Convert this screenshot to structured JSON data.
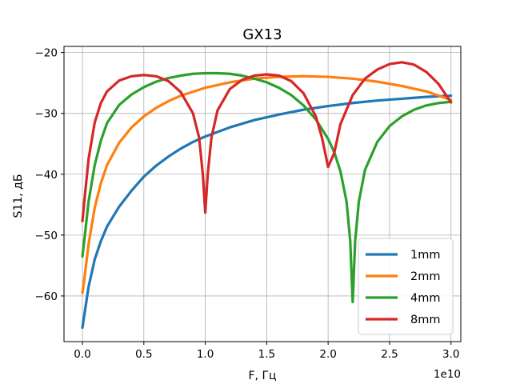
{
  "chart_data": {
    "type": "line",
    "title": "GX13",
    "xlabel": "F, Гц",
    "ylabel": "S11, дБ",
    "x_offset_label": "1e10",
    "xlim": [
      -0.15,
      3.08
    ],
    "ylim": [
      -67.5,
      -19
    ],
    "x_ticks": [
      0.0,
      0.5,
      1.0,
      1.5,
      2.0,
      2.5,
      3.0
    ],
    "x_tick_labels": [
      "0.0",
      "0.5",
      "1.0",
      "1.5",
      "2.0",
      "2.5",
      "3.0"
    ],
    "y_ticks": [
      -60,
      -50,
      -40,
      -30,
      -20
    ],
    "y_tick_labels": [
      "−60",
      "−50",
      "−40",
      "−30",
      "−20"
    ],
    "grid": true,
    "legend_position": "lower-right",
    "series": [
      {
        "name": "1mm",
        "color": "#1f77b4",
        "points": [
          [
            0.0,
            -65.2
          ],
          [
            0.02,
            -62.5
          ],
          [
            0.05,
            -58.5
          ],
          [
            0.1,
            -54.0
          ],
          [
            0.15,
            -51.0
          ],
          [
            0.2,
            -48.6
          ],
          [
            0.3,
            -45.3
          ],
          [
            0.4,
            -42.7
          ],
          [
            0.5,
            -40.4
          ],
          [
            0.6,
            -38.6
          ],
          [
            0.7,
            -37.1
          ],
          [
            0.8,
            -35.8
          ],
          [
            0.9,
            -34.7
          ],
          [
            1.0,
            -33.8
          ],
          [
            1.2,
            -32.3
          ],
          [
            1.4,
            -31.1
          ],
          [
            1.6,
            -30.2
          ],
          [
            1.8,
            -29.4
          ],
          [
            2.0,
            -28.8
          ],
          [
            2.2,
            -28.3
          ],
          [
            2.4,
            -27.9
          ],
          [
            2.6,
            -27.6
          ],
          [
            2.8,
            -27.3
          ],
          [
            3.0,
            -27.1
          ]
        ]
      },
      {
        "name": "2mm",
        "color": "#ff7f0e",
        "points": [
          [
            0.0,
            -59.5
          ],
          [
            0.02,
            -56.5
          ],
          [
            0.05,
            -51.5
          ],
          [
            0.1,
            -45.5
          ],
          [
            0.15,
            -41.5
          ],
          [
            0.2,
            -38.5
          ],
          [
            0.3,
            -34.8
          ],
          [
            0.4,
            -32.3
          ],
          [
            0.5,
            -30.5
          ],
          [
            0.6,
            -29.1
          ],
          [
            0.7,
            -28.0
          ],
          [
            0.8,
            -27.1
          ],
          [
            1.0,
            -25.8
          ],
          [
            1.2,
            -24.9
          ],
          [
            1.4,
            -24.3
          ],
          [
            1.6,
            -24.0
          ],
          [
            1.8,
            -23.9
          ],
          [
            2.0,
            -24.0
          ],
          [
            2.2,
            -24.3
          ],
          [
            2.4,
            -24.8
          ],
          [
            2.6,
            -25.5
          ],
          [
            2.8,
            -26.4
          ],
          [
            3.0,
            -27.8
          ]
        ]
      },
      {
        "name": "4mm",
        "color": "#2ca02c",
        "points": [
          [
            0.0,
            -53.5
          ],
          [
            0.02,
            -50.0
          ],
          [
            0.05,
            -44.5
          ],
          [
            0.1,
            -38.5
          ],
          [
            0.15,
            -34.5
          ],
          [
            0.2,
            -31.6
          ],
          [
            0.3,
            -28.6
          ],
          [
            0.4,
            -26.9
          ],
          [
            0.5,
            -25.7
          ],
          [
            0.6,
            -24.8
          ],
          [
            0.7,
            -24.2
          ],
          [
            0.8,
            -23.8
          ],
          [
            0.9,
            -23.5
          ],
          [
            1.0,
            -23.4
          ],
          [
            1.1,
            -23.4
          ],
          [
            1.2,
            -23.5
          ],
          [
            1.3,
            -23.8
          ],
          [
            1.4,
            -24.3
          ],
          [
            1.5,
            -24.9
          ],
          [
            1.6,
            -25.8
          ],
          [
            1.7,
            -27.0
          ],
          [
            1.8,
            -28.7
          ],
          [
            1.9,
            -31.0
          ],
          [
            2.0,
            -34.2
          ],
          [
            2.05,
            -36.4
          ],
          [
            2.1,
            -39.5
          ],
          [
            2.15,
            -44.5
          ],
          [
            2.18,
            -51.0
          ],
          [
            2.2,
            -61.0
          ],
          [
            2.22,
            -51.0
          ],
          [
            2.25,
            -44.5
          ],
          [
            2.3,
            -39.3
          ],
          [
            2.4,
            -34.7
          ],
          [
            2.5,
            -32.1
          ],
          [
            2.6,
            -30.5
          ],
          [
            2.7,
            -29.4
          ],
          [
            2.8,
            -28.7
          ],
          [
            2.9,
            -28.3
          ],
          [
            3.0,
            -28.1
          ]
        ]
      },
      {
        "name": "8mm",
        "color": "#d62728",
        "points": [
          [
            0.0,
            -47.7
          ],
          [
            0.02,
            -43.5
          ],
          [
            0.05,
            -37.5
          ],
          [
            0.1,
            -31.5
          ],
          [
            0.15,
            -28.3
          ],
          [
            0.2,
            -26.4
          ],
          [
            0.3,
            -24.6
          ],
          [
            0.4,
            -23.9
          ],
          [
            0.5,
            -23.7
          ],
          [
            0.6,
            -23.9
          ],
          [
            0.7,
            -24.7
          ],
          [
            0.8,
            -26.5
          ],
          [
            0.9,
            -30.0
          ],
          [
            0.95,
            -34.0
          ],
          [
            0.98,
            -40.0
          ],
          [
            1.0,
            -46.3
          ],
          [
            1.02,
            -40.0
          ],
          [
            1.05,
            -34.0
          ],
          [
            1.1,
            -29.5
          ],
          [
            1.2,
            -26.0
          ],
          [
            1.3,
            -24.5
          ],
          [
            1.4,
            -23.8
          ],
          [
            1.5,
            -23.6
          ],
          [
            1.6,
            -23.8
          ],
          [
            1.7,
            -24.7
          ],
          [
            1.8,
            -26.7
          ],
          [
            1.9,
            -30.5
          ],
          [
            1.95,
            -34.0
          ],
          [
            2.0,
            -38.8
          ],
          [
            2.05,
            -36.5
          ],
          [
            2.1,
            -31.8
          ],
          [
            2.2,
            -27.0
          ],
          [
            2.3,
            -24.3
          ],
          [
            2.4,
            -22.8
          ],
          [
            2.5,
            -21.9
          ],
          [
            2.6,
            -21.6
          ],
          [
            2.7,
            -22.0
          ],
          [
            2.8,
            -23.2
          ],
          [
            2.9,
            -25.2
          ],
          [
            3.0,
            -28.2
          ]
        ]
      }
    ]
  }
}
